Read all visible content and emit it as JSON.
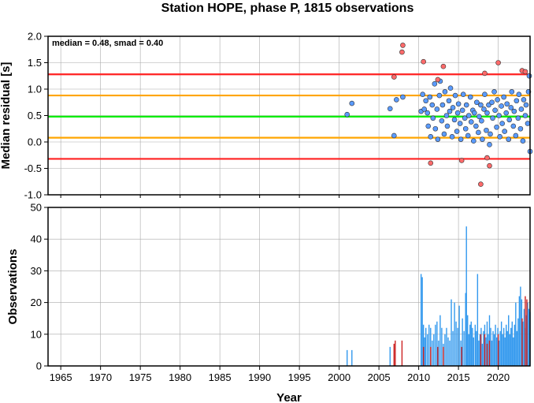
{
  "chart_data": [
    {
      "type": "scatter",
      "title": "Station HOPE, phase P, 1815 observations",
      "xlabel": "",
      "ylabel": "Median residual [s]",
      "annotation": "median = 0.48, smad = 0.40",
      "xlim": [
        1963.4,
        2024.0
      ],
      "ylim": [
        -1.0,
        2.0
      ],
      "y_ticks": [
        "-1.0",
        "-0.5",
        "0.0",
        "0.5",
        "1.0",
        "1.5",
        "2.0"
      ],
      "grid": true,
      "reference_lines": [
        {
          "y": 1.28,
          "color": "#ff2020"
        },
        {
          "y": 0.88,
          "color": "#ffa500"
        },
        {
          "y": 0.48,
          "color": "#00ee00"
        },
        {
          "y": 0.08,
          "color": "#ffa500"
        },
        {
          "y": -0.32,
          "color": "#ff2020"
        }
      ],
      "series": [
        {
          "color": "#5a9bff",
          "points": [
            [
              2001.0,
              0.52
            ],
            [
              2001.6,
              0.73
            ],
            [
              2006.4,
              0.63
            ],
            [
              2006.9,
              0.12
            ],
            [
              2007.2,
              0.8
            ],
            [
              2008.0,
              0.85
            ],
            [
              2010.3,
              0.58
            ],
            [
              2010.5,
              0.9
            ],
            [
              2010.7,
              0.62
            ],
            [
              2010.9,
              0.78
            ],
            [
              2011.1,
              0.55
            ],
            [
              2011.2,
              0.3
            ],
            [
              2011.4,
              0.85
            ],
            [
              2011.5,
              0.1
            ],
            [
              2011.7,
              0.7
            ],
            [
              2011.8,
              0.45
            ],
            [
              2012.0,
              1.1
            ],
            [
              2012.1,
              0.25
            ],
            [
              2012.3,
              0.62
            ],
            [
              2012.4,
              0.05
            ],
            [
              2012.6,
              0.88
            ],
            [
              2012.7,
              1.15
            ],
            [
              2012.9,
              0.4
            ],
            [
              2013.0,
              0.7
            ],
            [
              2013.2,
              0.15
            ],
            [
              2013.3,
              0.95
            ],
            [
              2013.5,
              0.5
            ],
            [
              2013.6,
              0.3
            ],
            [
              2013.8,
              0.78
            ],
            [
              2013.9,
              0.58
            ],
            [
              2014.0,
              1.02
            ],
            [
              2014.2,
              0.1
            ],
            [
              2014.3,
              0.65
            ],
            [
              2014.5,
              0.42
            ],
            [
              2014.6,
              0.88
            ],
            [
              2014.8,
              0.2
            ],
            [
              2014.9,
              0.55
            ],
            [
              2015.0,
              0.72
            ],
            [
              2015.2,
              0.35
            ],
            [
              2015.3,
              0.05
            ],
            [
              2015.5,
              0.6
            ],
            [
              2015.6,
              0.9
            ],
            [
              2015.8,
              0.45
            ],
            [
              2015.9,
              0.25
            ],
            [
              2016.0,
              0.7
            ],
            [
              2016.2,
              0.12
            ],
            [
              2016.3,
              0.5
            ],
            [
              2016.5,
              0.85
            ],
            [
              2016.6,
              0.38
            ],
            [
              2016.8,
              0.6
            ],
            [
              2016.9,
              0.02
            ],
            [
              2017.0,
              0.55
            ],
            [
              2017.2,
              0.3
            ],
            [
              2017.3,
              0.75
            ],
            [
              2017.5,
              0.18
            ],
            [
              2017.6,
              0.48
            ],
            [
              2017.8,
              0.7
            ],
            [
              2017.9,
              0.4
            ],
            [
              2018.0,
              0.05
            ],
            [
              2018.2,
              0.62
            ],
            [
              2018.3,
              0.9
            ],
            [
              2018.5,
              0.22
            ],
            [
              2018.6,
              0.55
            ],
            [
              2018.8,
              0.7
            ],
            [
              2018.9,
              -0.05
            ],
            [
              2019.0,
              0.15
            ],
            [
              2019.2,
              0.75
            ],
            [
              2019.3,
              0.45
            ],
            [
              2019.5,
              0.95
            ],
            [
              2019.6,
              0.6
            ],
            [
              2019.8,
              0.28
            ],
            [
              2019.9,
              0.8
            ],
            [
              2020.1,
              0.5
            ],
            [
              2020.2,
              0.1
            ],
            [
              2020.4,
              0.68
            ],
            [
              2020.5,
              0.35
            ],
            [
              2020.7,
              0.85
            ],
            [
              2020.8,
              0.2
            ],
            [
              2021.0,
              0.55
            ],
            [
              2021.1,
              0.72
            ],
            [
              2021.3,
              0.05
            ],
            [
              2021.4,
              0.42
            ],
            [
              2021.6,
              0.65
            ],
            [
              2021.7,
              0.95
            ],
            [
              2021.9,
              0.3
            ],
            [
              2022.0,
              0.58
            ],
            [
              2022.2,
              0.12
            ],
            [
              2022.3,
              0.78
            ],
            [
              2022.5,
              0.45
            ],
            [
              2022.6,
              0.9
            ],
            [
              2022.8,
              0.25
            ],
            [
              2022.9,
              0.62
            ],
            [
              2023.1,
              0.02
            ],
            [
              2023.2,
              0.8
            ],
            [
              2023.4,
              0.5
            ],
            [
              2023.5,
              0.7
            ],
            [
              2023.7,
              0.35
            ],
            [
              2023.8,
              0.95
            ],
            [
              2023.9,
              1.25
            ],
            [
              2024.0,
              -0.18
            ]
          ]
        },
        {
          "color": "#ff6a6a",
          "points": [
            [
              2006.9,
              1.23
            ],
            [
              2007.9,
              1.7
            ],
            [
              2008.0,
              1.83
            ],
            [
              2010.6,
              1.52
            ],
            [
              2011.5,
              -0.4
            ],
            [
              2012.4,
              1.18
            ],
            [
              2013.1,
              1.43
            ],
            [
              2015.4,
              -0.35
            ],
            [
              2017.8,
              -0.8
            ],
            [
              2018.3,
              1.3
            ],
            [
              2018.6,
              -0.3
            ],
            [
              2018.9,
              -0.45
            ],
            [
              2020.0,
              1.5
            ],
            [
              2023.0,
              1.35
            ],
            [
              2023.4,
              1.33
            ]
          ]
        }
      ]
    },
    {
      "type": "bar",
      "title": "",
      "xlabel": "Year",
      "ylabel": "Observations",
      "xlim": [
        1963.4,
        2024.0
      ],
      "ylim": [
        0,
        50
      ],
      "x_ticks": [
        "1965",
        "1970",
        "1975",
        "1980",
        "1985",
        "1990",
        "1995",
        "2000",
        "2005",
        "2010",
        "2015",
        "2020"
      ],
      "y_ticks": [
        "0",
        "10",
        "20",
        "30",
        "40",
        "50"
      ],
      "grid": true,
      "series": [
        {
          "color": "#3399ee",
          "bars": [
            [
              2001.0,
              5
            ],
            [
              2001.6,
              5
            ],
            [
              2006.4,
              6
            ],
            [
              2010.3,
              29
            ],
            [
              2010.45,
              28
            ],
            [
              2010.6,
              13
            ],
            [
              2010.75,
              9
            ],
            [
              2010.9,
              12
            ],
            [
              2011.1,
              10
            ],
            [
              2011.3,
              13
            ],
            [
              2011.5,
              12
            ],
            [
              2011.7,
              8
            ],
            [
              2011.9,
              10
            ],
            [
              2012.1,
              13
            ],
            [
              2012.3,
              14
            ],
            [
              2012.5,
              8
            ],
            [
              2012.7,
              16
            ],
            [
              2012.9,
              12
            ],
            [
              2013.1,
              7
            ],
            [
              2013.3,
              10
            ],
            [
              2013.5,
              12
            ],
            [
              2013.7,
              9
            ],
            [
              2013.9,
              8
            ],
            [
              2014.1,
              21
            ],
            [
              2014.3,
              11
            ],
            [
              2014.5,
              20
            ],
            [
              2014.7,
              14
            ],
            [
              2014.9,
              12
            ],
            [
              2015.1,
              19
            ],
            [
              2015.3,
              8
            ],
            [
              2015.5,
              15
            ],
            [
              2015.7,
              11
            ],
            [
              2015.9,
              23
            ],
            [
              2016.0,
              44
            ],
            [
              2016.15,
              16
            ],
            [
              2016.3,
              10
            ],
            [
              2016.45,
              13
            ],
            [
              2016.6,
              14
            ],
            [
              2016.75,
              12
            ],
            [
              2016.9,
              9
            ],
            [
              2017.1,
              13
            ],
            [
              2017.25,
              11
            ],
            [
              2017.4,
              29
            ],
            [
              2017.55,
              8
            ],
            [
              2017.7,
              10
            ],
            [
              2017.85,
              12
            ],
            [
              2018.0,
              7
            ],
            [
              2018.15,
              11
            ],
            [
              2018.3,
              13
            ],
            [
              2018.45,
              9
            ],
            [
              2018.6,
              14
            ],
            [
              2018.75,
              10
            ],
            [
              2018.9,
              16
            ],
            [
              2019.05,
              12
            ],
            [
              2019.2,
              8
            ],
            [
              2019.35,
              11
            ],
            [
              2019.5,
              10
            ],
            [
              2019.65,
              13
            ],
            [
              2019.8,
              9
            ],
            [
              2019.95,
              12
            ],
            [
              2020.1,
              8
            ],
            [
              2020.25,
              11
            ],
            [
              2020.4,
              14
            ],
            [
              2020.55,
              10
            ],
            [
              2020.7,
              12
            ],
            [
              2020.85,
              9
            ],
            [
              2021.0,
              13
            ],
            [
              2021.15,
              11
            ],
            [
              2021.3,
              16
            ],
            [
              2021.45,
              10
            ],
            [
              2021.6,
              12
            ],
            [
              2021.75,
              14
            ],
            [
              2021.9,
              9
            ],
            [
              2022.05,
              13
            ],
            [
              2022.2,
              20
            ],
            [
              2022.35,
              11
            ],
            [
              2022.5,
              15
            ],
            [
              2022.65,
              22
            ],
            [
              2022.8,
              25
            ],
            [
              2022.95,
              21
            ],
            [
              2023.1,
              14
            ],
            [
              2023.25,
              18
            ],
            [
              2023.4,
              12
            ],
            [
              2023.55,
              16
            ],
            [
              2023.7,
              20
            ],
            [
              2023.85,
              18
            ],
            [
              2024.0,
              17
            ]
          ]
        },
        {
          "color": "#cc2222",
          "bars": [
            [
              2006.9,
              7
            ],
            [
              2007.05,
              8
            ],
            [
              2007.9,
              8
            ],
            [
              2010.6,
              6
            ],
            [
              2011.5,
              6
            ],
            [
              2012.4,
              6
            ],
            [
              2013.1,
              6
            ],
            [
              2015.4,
              6
            ],
            [
              2017.8,
              10
            ],
            [
              2018.3,
              10
            ],
            [
              2018.6,
              7
            ],
            [
              2018.9,
              8
            ],
            [
              2020.0,
              10
            ],
            [
              2023.0,
              15
            ],
            [
              2023.4,
              22
            ],
            [
              2023.6,
              21
            ]
          ]
        }
      ]
    }
  ]
}
